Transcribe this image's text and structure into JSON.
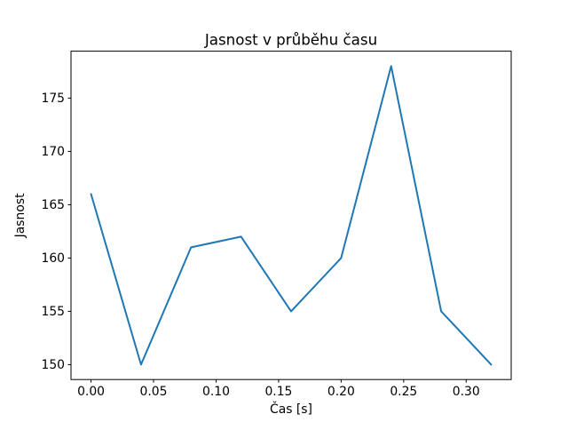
{
  "chart_data": {
    "type": "line",
    "title": "Jasnost v průběhu času",
    "xlabel": "Čas [s]",
    "ylabel": "Jasnost",
    "x": [
      0.0,
      0.04,
      0.08,
      0.12,
      0.16,
      0.2,
      0.24,
      0.28,
      0.32
    ],
    "series": [
      {
        "name": "Jasnost",
        "values": [
          166,
          150,
          161,
          162,
          155,
          160,
          178,
          155,
          150
        ],
        "color": "#1f77b4"
      }
    ],
    "xlim": [
      -0.016,
      0.336
    ],
    "ylim": [
      148.6,
      179.4
    ],
    "xtick_values": [
      0.0,
      0.05,
      0.1,
      0.15,
      0.2,
      0.25,
      0.3
    ],
    "xtick_labels": [
      "0.00",
      "0.05",
      "0.10",
      "0.15",
      "0.20",
      "0.25",
      "0.30"
    ],
    "ytick_values": [
      150,
      155,
      160,
      165,
      170,
      175
    ],
    "ytick_labels": [
      "150",
      "155",
      "160",
      "165",
      "170",
      "175"
    ],
    "grid": false,
    "legend": null,
    "background_color": "#ffffff",
    "axes_edge_color": "#000000"
  }
}
